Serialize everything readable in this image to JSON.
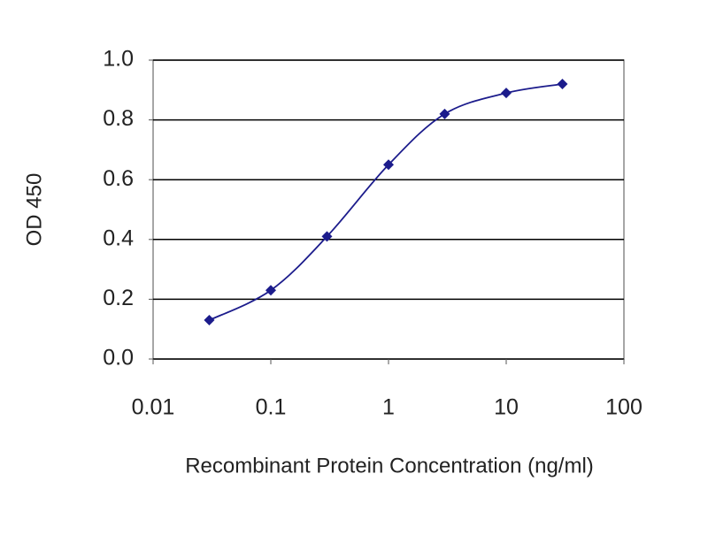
{
  "chart_data": {
    "type": "line",
    "x_label": "Recombinant Protein Concentration (ng/ml)",
    "y_label": "OD 450",
    "x_scale": "log",
    "x": [
      0.03,
      0.1,
      0.3,
      1,
      3,
      10,
      30
    ],
    "series": [
      {
        "color": "#1c1c8c",
        "values": [
          0.13,
          0.23,
          0.41,
          0.65,
          0.82,
          0.89,
          0.92
        ]
      }
    ],
    "xlim": [
      0.01,
      100
    ],
    "xticks": [
      0.01,
      0.1,
      1,
      10,
      100
    ],
    "ylim": [
      0,
      1
    ],
    "yticks": [
      {
        "value": 0,
        "label": "0.0"
      },
      0.2,
      0.4,
      0.6,
      0.8,
      {
        "value": 1,
        "label": "1.0"
      }
    ],
    "grid": true,
    "smooth": true
  }
}
